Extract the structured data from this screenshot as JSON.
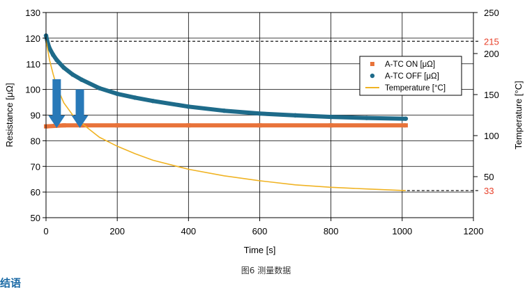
{
  "caption": "图6 测量数据",
  "next_heading": "结语",
  "chart_data": {
    "type": "line",
    "xlabel": "Time [s]",
    "ylabel": "Resistance [μΩ]",
    "y2label": "Temperature [°C]",
    "xlim": [
      0,
      1200
    ],
    "ylim": [
      50,
      130
    ],
    "y2lim": [
      0,
      250
    ],
    "x_ticks": [
      "0",
      "200",
      "400",
      "600",
      "800",
      "1000",
      "1200"
    ],
    "y_ticks": [
      "50",
      "60",
      "70",
      "80",
      "90",
      "100",
      "110",
      "120",
      "130"
    ],
    "y2_ticks": [
      "50",
      "100",
      "150",
      "200",
      "250"
    ],
    "grid": true,
    "legend": "top-right",
    "reference_lines": [
      {
        "axis": "y2",
        "value": 215,
        "label": "215",
        "color": "#e8402a"
      },
      {
        "axis": "y2",
        "value": 33,
        "label": "33",
        "color": "#e8402a"
      }
    ],
    "series": [
      {
        "name": "A-TC ON [μΩ]",
        "axis": "y",
        "color": "#e8733a",
        "marker": "square",
        "x": [
          0,
          25,
          50,
          100,
          200,
          400,
          600,
          800,
          1010
        ],
        "values": [
          85.6,
          85.8,
          86.0,
          86.0,
          86.0,
          86.0,
          86.0,
          86.0,
          86.0
        ]
      },
      {
        "name": "A-TC OFF [μΩ]",
        "axis": "y",
        "color": "#1e6b8a",
        "marker": "circle",
        "x": [
          0,
          5,
          10,
          20,
          30,
          50,
          75,
          100,
          150,
          200,
          250,
          300,
          400,
          500,
          600,
          700,
          800,
          900,
          1010
        ],
        "values": [
          121,
          118,
          116,
          113.5,
          111.5,
          108.5,
          105.8,
          103.8,
          100.5,
          98.3,
          96.8,
          95.5,
          93.3,
          91.7,
          90.6,
          89.9,
          89.3,
          88.9,
          88.6
        ]
      },
      {
        "name": "Temperature [°C]",
        "axis": "y2",
        "color": "#f0b323",
        "marker": "none",
        "x": [
          0,
          10,
          20,
          30,
          50,
          75,
          100,
          150,
          200,
          250,
          300,
          400,
          500,
          600,
          700,
          800,
          900,
          1010
        ],
        "values": [
          216,
          192,
          175,
          160,
          140,
          125,
          115,
          98,
          87,
          78,
          70,
          59,
          51,
          45,
          40,
          37,
          35,
          33
        ]
      }
    ],
    "annotations": [
      {
        "type": "arrow-down",
        "x": 30,
        "from": 104,
        "to": 85,
        "color": "#2879b8"
      },
      {
        "type": "arrow-down",
        "x": 95,
        "from": 100,
        "to": 85,
        "color": "#2879b8"
      }
    ]
  }
}
